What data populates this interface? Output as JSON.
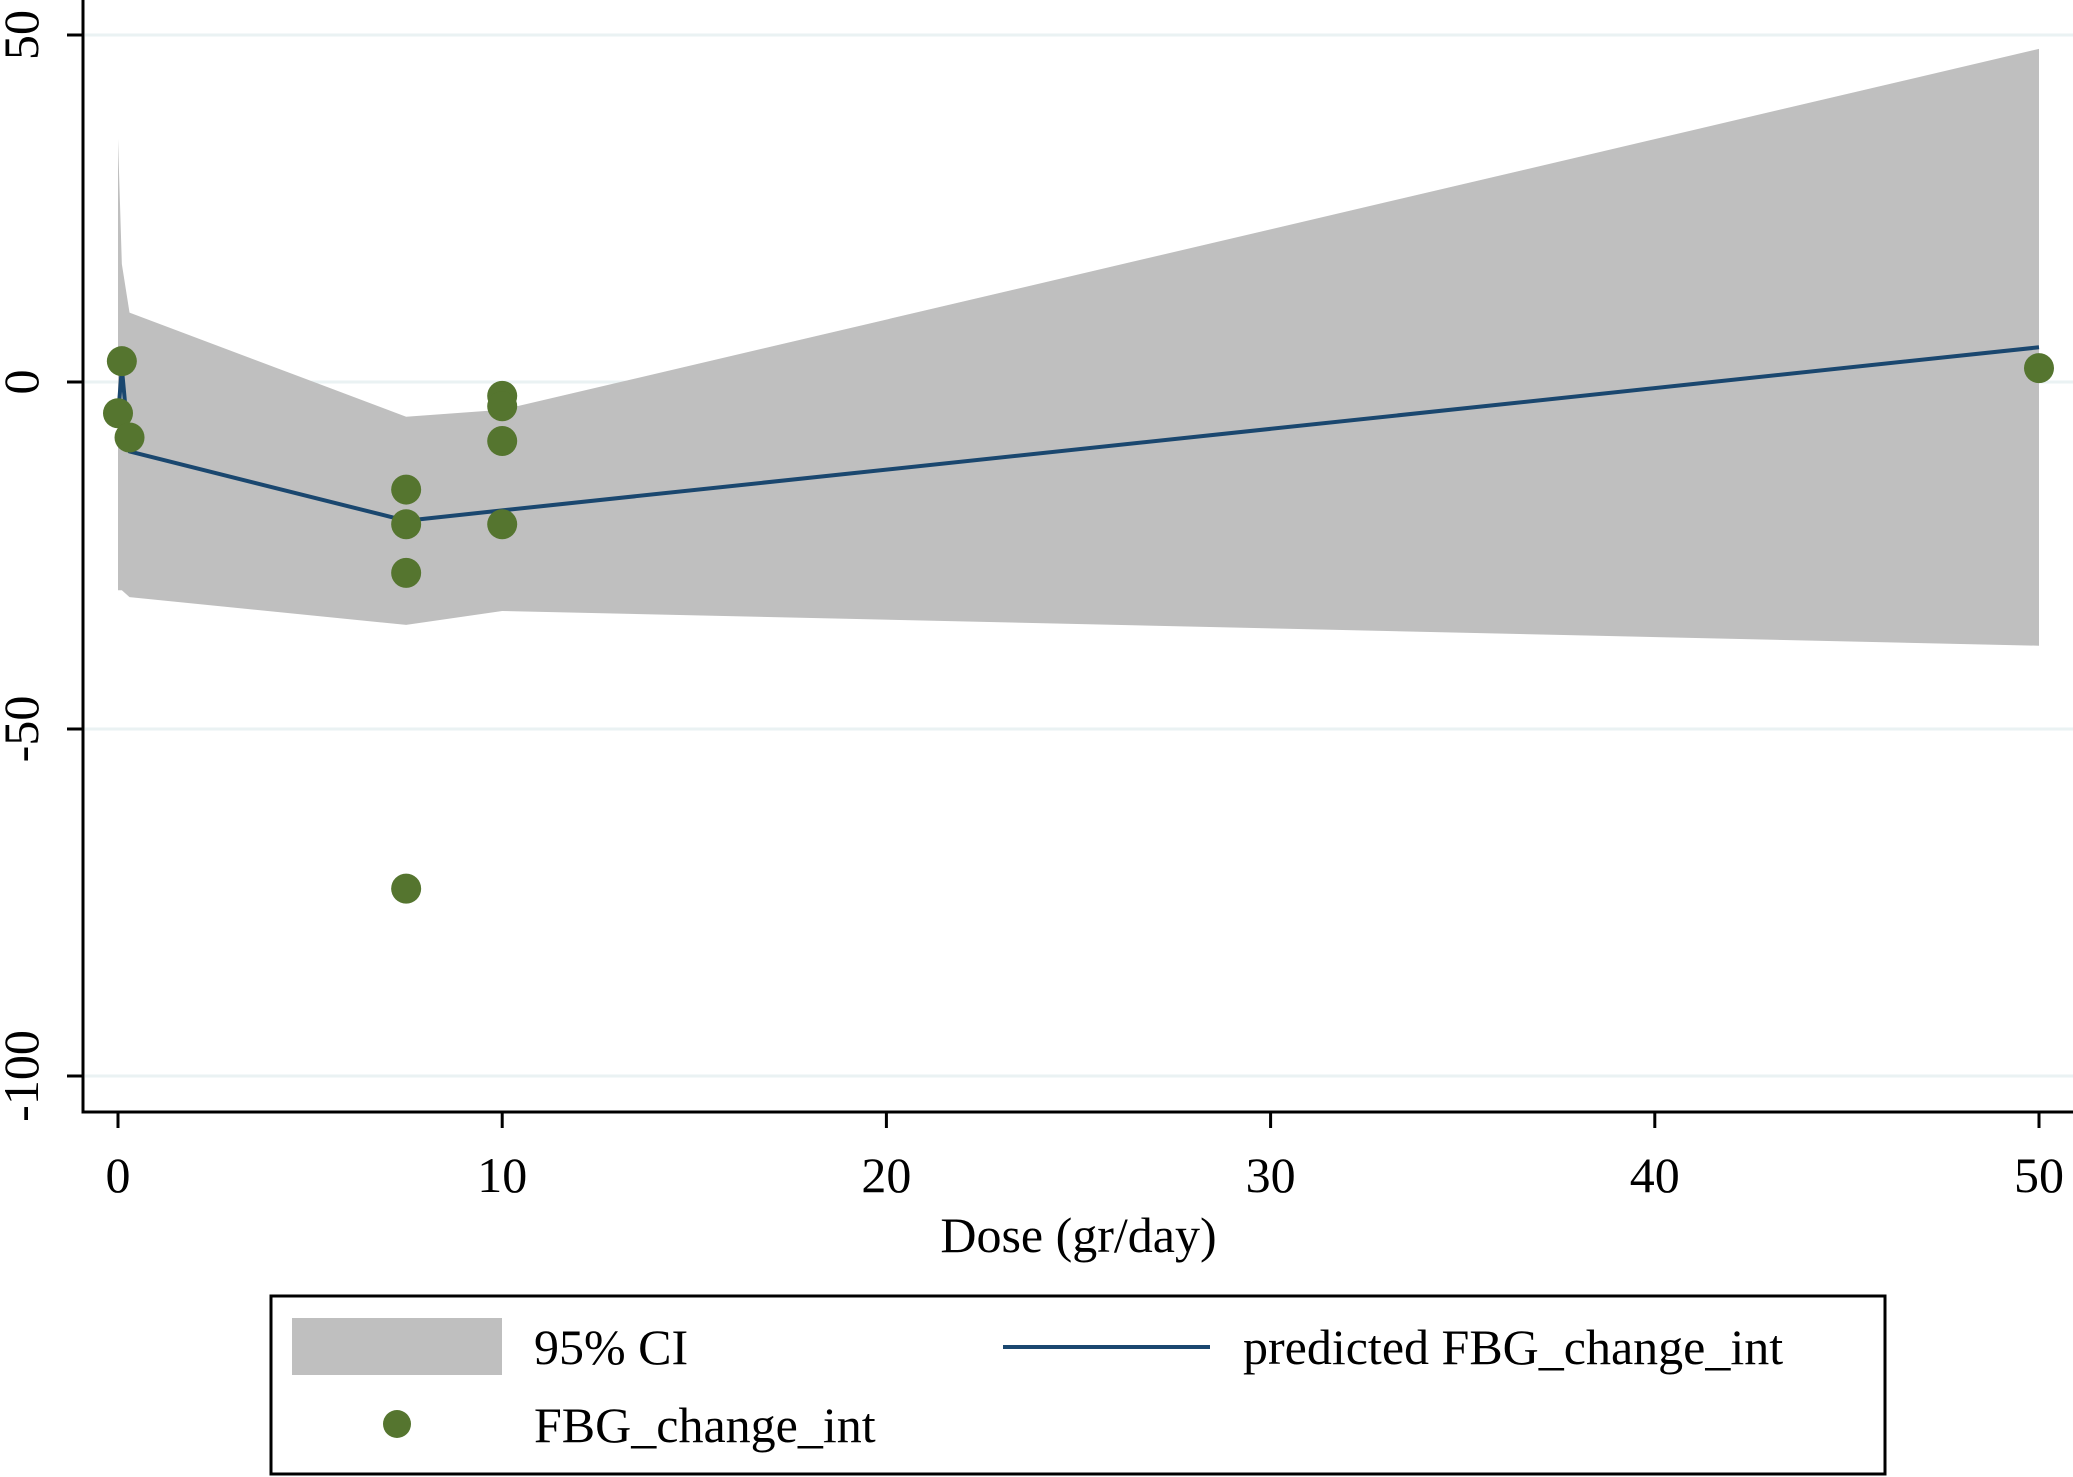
{
  "chart_data": {
    "type": "line",
    "title": "",
    "xlabel": "Dose (gr/day)",
    "ylabel": "",
    "xlim": [
      -1,
      50
    ],
    "ylim": [
      -105,
      50
    ],
    "x_ticks": [
      0,
      10,
      20,
      30,
      40,
      50
    ],
    "y_ticks": [
      50,
      0,
      -50,
      -100
    ],
    "y_tick_labels": [
      "50",
      "0",
      "-50",
      "-100"
    ],
    "x_tick_labels": [
      "0",
      "10",
      "20",
      "30",
      "40",
      "50"
    ],
    "grid": true,
    "legend_position": "bottom",
    "colors": {
      "ci_band": "#bfbfbf",
      "predicted_line": "#1a476f",
      "points": "#55752f",
      "gridline": "#eaf2f3"
    },
    "ci_band": {
      "name": "95% CI",
      "x": [
        0,
        0.1,
        0.3,
        7.5,
        10,
        50
      ],
      "upper": [
        35,
        17,
        10,
        -5,
        -4,
        48
      ],
      "lower": [
        -30,
        -30,
        -31,
        -35,
        -33,
        -38
      ]
    },
    "predicted": {
      "name": "predicted FBG_change_int",
      "x": [
        0,
        0.1,
        0.3,
        7.5,
        10,
        50
      ],
      "y": [
        -5,
        2,
        -10,
        -20,
        -18.5,
        5
      ]
    },
    "points": {
      "name": "FBG_change_int",
      "x": [
        0.1,
        0,
        0.3,
        7.5,
        7.5,
        7.5,
        7.5,
        10,
        10,
        10,
        10,
        50
      ],
      "y": [
        3,
        -4.5,
        -8,
        -15.5,
        -20.5,
        -27.5,
        -73,
        -2,
        -3.5,
        -8.5,
        -20.5,
        2
      ]
    }
  },
  "legend": {
    "items": [
      {
        "label": "95% CI",
        "type": "band"
      },
      {
        "label": "predicted FBG_change_int",
        "type": "line"
      },
      {
        "label": "FBG_change_int",
        "type": "point"
      }
    ]
  }
}
